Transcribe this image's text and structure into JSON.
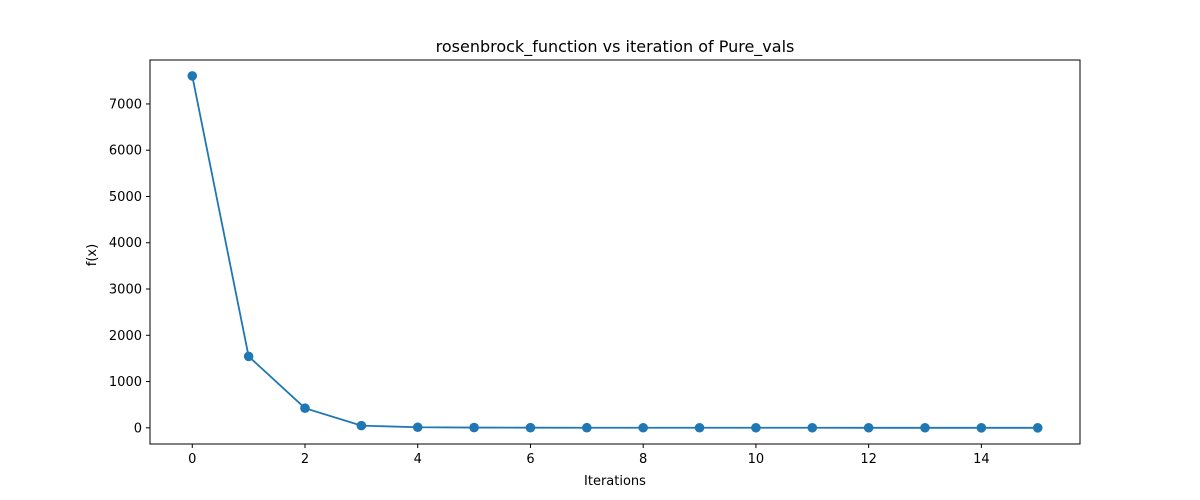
{
  "chart_data": {
    "type": "line",
    "title": "rosenbrock_function vs iteration of Pure_vals",
    "xlabel": "Iterations",
    "ylabel": "f(x)",
    "xlim": [
      -0.75,
      15.75
    ],
    "ylim": [
      -350,
      7950
    ],
    "xticks": [
      0,
      2,
      4,
      6,
      8,
      10,
      12,
      14
    ],
    "yticks": [
      0,
      1000,
      2000,
      3000,
      4000,
      5000,
      6000,
      7000
    ],
    "grid": false,
    "marker": "circle",
    "series": [
      {
        "color": "#1f77b4",
        "x": [
          0,
          1,
          2,
          3,
          4,
          5,
          6,
          7,
          8,
          9,
          10,
          11,
          12,
          13,
          14,
          15
        ],
        "y": [
          7606,
          1544,
          424,
          47,
          12,
          5,
          3,
          2,
          1.5,
          1,
          0.8,
          0.6,
          0.4,
          0.3,
          0.2,
          0.1
        ]
      }
    ]
  }
}
